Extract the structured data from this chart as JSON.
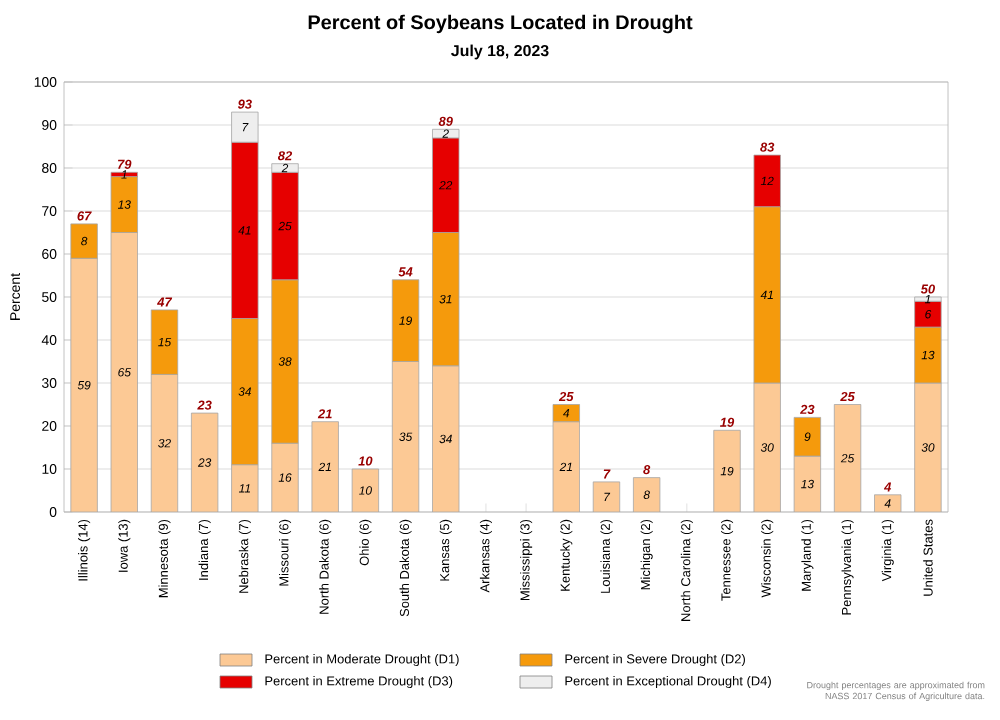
{
  "chart_data": {
    "type": "bar",
    "stacked": true,
    "title": "Percent of Soybeans Located in Drought",
    "subtitle": "July 18, 2023",
    "ylabel": "Percent",
    "categories": [
      "Illinois (14)",
      "Iowa (13)",
      "Minnesota (9)",
      "Indiana (7)",
      "Nebraska (7)",
      "Missouri (6)",
      "North Dakota (6)",
      "Ohio (6)",
      "South Dakota (6)",
      "Kansas (5)",
      "Arkansas (4)",
      "Mississippi (3)",
      "Kentucky (2)",
      "Louisiana (2)",
      "Michigan (2)",
      "North Carolina (2)",
      "Tennessee (2)",
      "Wisconsin (2)",
      "Maryland (1)",
      "Pennsylvania (1)",
      "Virginia (1)",
      "United States"
    ],
    "series": [
      {
        "name": "Percent in Moderate Drought (D1)",
        "color": "#fcc995",
        "values": [
          59,
          65,
          32,
          23,
          11,
          16,
          21,
          10,
          35,
          34,
          null,
          null,
          21,
          7,
          8,
          null,
          19,
          30,
          13,
          25,
          4,
          30
        ]
      },
      {
        "name": "Percent in Severe Drought (D2)",
        "color": "#f59a0c",
        "values": [
          8,
          13,
          15,
          null,
          34,
          38,
          null,
          null,
          19,
          31,
          null,
          null,
          4,
          null,
          null,
          null,
          null,
          41,
          9,
          null,
          null,
          13
        ]
      },
      {
        "name": "Percent in Extreme Drought (D3)",
        "color": "#e60000",
        "values": [
          null,
          1,
          null,
          null,
          41,
          25,
          null,
          null,
          null,
          22,
          null,
          null,
          null,
          null,
          null,
          null,
          null,
          12,
          null,
          null,
          null,
          6
        ]
      },
      {
        "name": "Percent in Exceptional Drought (D4)",
        "color": "#eeeeee",
        "values": [
          null,
          null,
          null,
          null,
          7,
          2,
          null,
          null,
          null,
          2,
          null,
          null,
          null,
          null,
          null,
          null,
          null,
          null,
          null,
          null,
          null,
          1
        ]
      }
    ],
    "totals": [
      "67",
      "79",
      "47",
      "23",
      "93",
      "82",
      "21",
      "10",
      "54",
      "89",
      null,
      null,
      "25",
      "7",
      "8",
      null,
      "19",
      "83",
      "23",
      "25",
      "4",
      "50"
    ],
    "data_labels": true,
    "ylim": [
      0,
      100
    ],
    "yticks": [
      0,
      10,
      20,
      30,
      40,
      50,
      60,
      70,
      80,
      90,
      100
    ],
    "grid": "y",
    "legend": "bottom",
    "annotations": [
      "Drought percentages are approximated from NASS 2017 Census of Agriculture data."
    ]
  }
}
